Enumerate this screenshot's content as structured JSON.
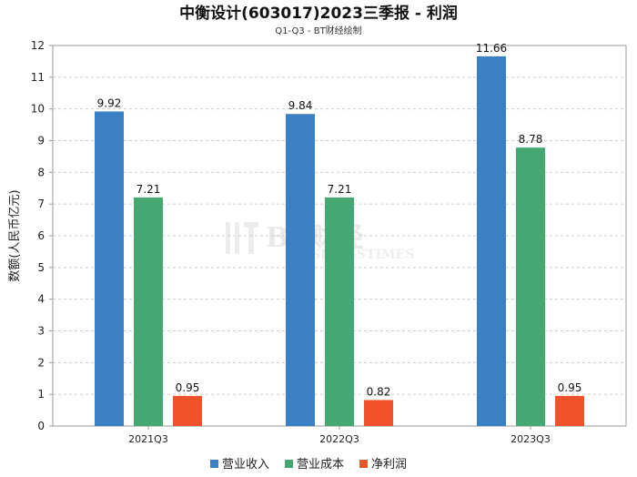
{
  "chart_data": {
    "type": "bar",
    "title": "中衡设计(603017)2023三季报 - 利润",
    "subtitle": "Q1-Q3 - BT财经绘制",
    "ylabel": "数额(人民币亿元)",
    "xlabel": "",
    "categories": [
      "2021Q3",
      "2022Q3",
      "2023Q3"
    ],
    "ylim": [
      0,
      12
    ],
    "yticks": [
      0,
      1,
      2,
      3,
      4,
      5,
      6,
      7,
      8,
      9,
      10,
      11,
      12
    ],
    "grid": true,
    "legend_position": "bottom",
    "series": [
      {
        "name": "营业收入",
        "color": "#3a80c3",
        "values": [
          9.92,
          9.84,
          11.66
        ],
        "labels": [
          "9.92",
          "9.84",
          "11.66"
        ]
      },
      {
        "name": "营业成本",
        "color": "#45a873",
        "values": [
          7.21,
          7.21,
          8.78
        ],
        "labels": [
          "7.21",
          "7.21",
          "8.78"
        ]
      },
      {
        "name": "净利润",
        "color": "#f0532b",
        "values": [
          0.95,
          0.82,
          0.95
        ],
        "labels": [
          "0.95",
          "0.82",
          "0.95"
        ]
      }
    ]
  },
  "watermark": {
    "main": "BT财经",
    "sub": "BUSINESSTIMES"
  }
}
